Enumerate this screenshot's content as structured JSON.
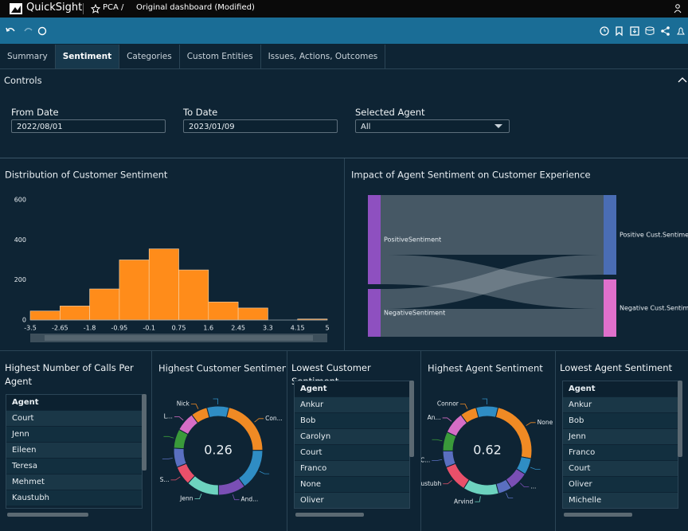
{
  "header": {
    "app": "QuickSight",
    "breadcrumb": "PCA /",
    "title": "Original dashboard (Modified)"
  },
  "tabs": {
    "items": [
      "Summary",
      "Sentiment",
      "Categories",
      "Custom Entities",
      "Issues, Actions, Outcomes"
    ],
    "active": 1
  },
  "controls": {
    "title": "Controls",
    "fields": [
      {
        "label": "From Date",
        "value": "2022/08/01"
      },
      {
        "label": "To Date",
        "value": "2023/01/09"
      },
      {
        "label": "Selected Agent",
        "value": "All"
      }
    ]
  },
  "chart_data": [
    {
      "type": "histogram",
      "title": "Distribution of Customer Sentiment",
      "bins": [
        -3.5,
        -2.65,
        -1.8,
        -0.95,
        -0.1,
        0.75,
        1.6,
        2.45,
        3.3,
        4.15,
        5
      ],
      "values": [
        45,
        70,
        155,
        300,
        355,
        250,
        90,
        60,
        0,
        5
      ],
      "color": "#ff8c1a",
      "xlim": [
        -3.5,
        5
      ],
      "xticks": [
        -3.5,
        -2.65,
        -1.8,
        -0.95,
        -0.1,
        0.75,
        1.6,
        2.45,
        3.3,
        4.15,
        5
      ],
      "ylim": [
        0,
        600
      ],
      "yticks": [
        0,
        200,
        400,
        600
      ],
      "grid": false
    },
    {
      "type": "sankey",
      "title": "Impact of Agent Sentiment on Customer Experience",
      "nodes": [
        {
          "name": "PositiveSentiment",
          "color": "#8e50c0"
        },
        {
          "name": "NegativeSentiment",
          "color": "#8e50c0"
        },
        {
          "name": "Positive Cust.Sentime",
          "color": "#4a6db4"
        },
        {
          "name": "Negative Cust.Sentim",
          "color": "#e070cc"
        }
      ],
      "links": [
        {
          "source": 0,
          "target": 2,
          "value": 75
        },
        {
          "source": 0,
          "target": 3,
          "value": 37
        },
        {
          "source": 1,
          "target": 2,
          "value": 25
        },
        {
          "source": 1,
          "target": 3,
          "value": 35
        }
      ]
    },
    {
      "type": "donut",
      "title": "Highest Customer Sentiment",
      "center_value": 0.26,
      "categories": [
        "Con...",
        null,
        "And...",
        "Jenn",
        "S...",
        null,
        null,
        "L...",
        "Nick",
        null
      ],
      "values": [
        21,
        15,
        10,
        12,
        7,
        7,
        7,
        7,
        6,
        8
      ],
      "colors": [
        "#f08a24",
        "#2f8dc4",
        "#7a4fb5",
        "#6dd3bf",
        "#e8506a",
        "#5a6fc0",
        "#3a9a3a",
        "#d66dc6",
        "#f08a24",
        "#2f8dc4"
      ]
    },
    {
      "type": "donut",
      "title": "Highest Agent Sentiment",
      "center_value": 0.62,
      "categories": [
        "None",
        null,
        "...",
        null,
        "Arvind",
        "Kaustubh",
        "C...",
        null,
        "An...",
        "Connor",
        null
      ],
      "values": [
        24,
        6,
        7,
        5,
        13,
        10,
        6,
        7,
        8,
        6,
        8
      ],
      "colors": [
        "#f08a24",
        "#2f8dc4",
        "#7a4fb5",
        "#5a6fc0",
        "#6dd3bf",
        "#e8506a",
        "#5a6fc0",
        "#3a9a3a",
        "#d66dc6",
        "#f08a24",
        "#2f8dc4"
      ]
    }
  ],
  "tables": [
    {
      "title": "Highest Number of Calls Per Agent",
      "column": "Agent",
      "rows": [
        "Court",
        "Jenn",
        "Eileen",
        "Teresa",
        "Mehmet",
        "Kaustubh"
      ]
    },
    {
      "title": "Lowest Customer Sentiment",
      "column": "Agent",
      "rows": [
        "Ankur",
        "Bob",
        "Carolyn",
        "Court",
        "Franco",
        "None",
        "Oliver"
      ]
    },
    {
      "title": "Lowest Agent Sentiment",
      "column": "Agent",
      "rows": [
        "Ankur",
        "Bob",
        "Jenn",
        "Franco",
        "Court",
        "Oliver",
        "Michelle"
      ]
    }
  ]
}
